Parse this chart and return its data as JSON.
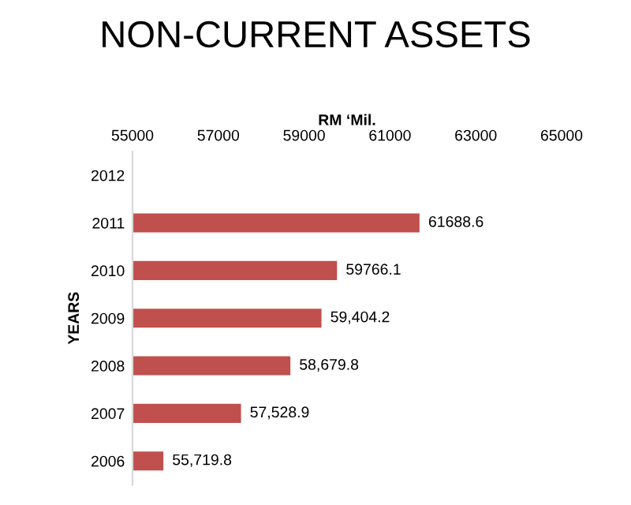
{
  "chart_data": {
    "type": "bar",
    "orientation": "horizontal",
    "title": "NON-CURRENT ASSETS",
    "xlabel": "RM ‘Mil.",
    "ylabel": "YEARS",
    "categories": [
      "2012",
      "2011",
      "2010",
      "2009",
      "2008",
      "2007",
      "2006"
    ],
    "values": [
      null,
      61688.6,
      59766.1,
      59404.2,
      58679.8,
      57528.9,
      55719.8
    ],
    "value_labels": [
      null,
      "61688.6",
      "59766.1",
      "59,404.2",
      "58,679.8",
      "57,528.9",
      "55,719.8"
    ],
    "color": "#c0504d",
    "xlim": [
      55000,
      65000
    ],
    "xticks": [
      55000,
      57000,
      59000,
      61000,
      63000,
      65000
    ]
  }
}
